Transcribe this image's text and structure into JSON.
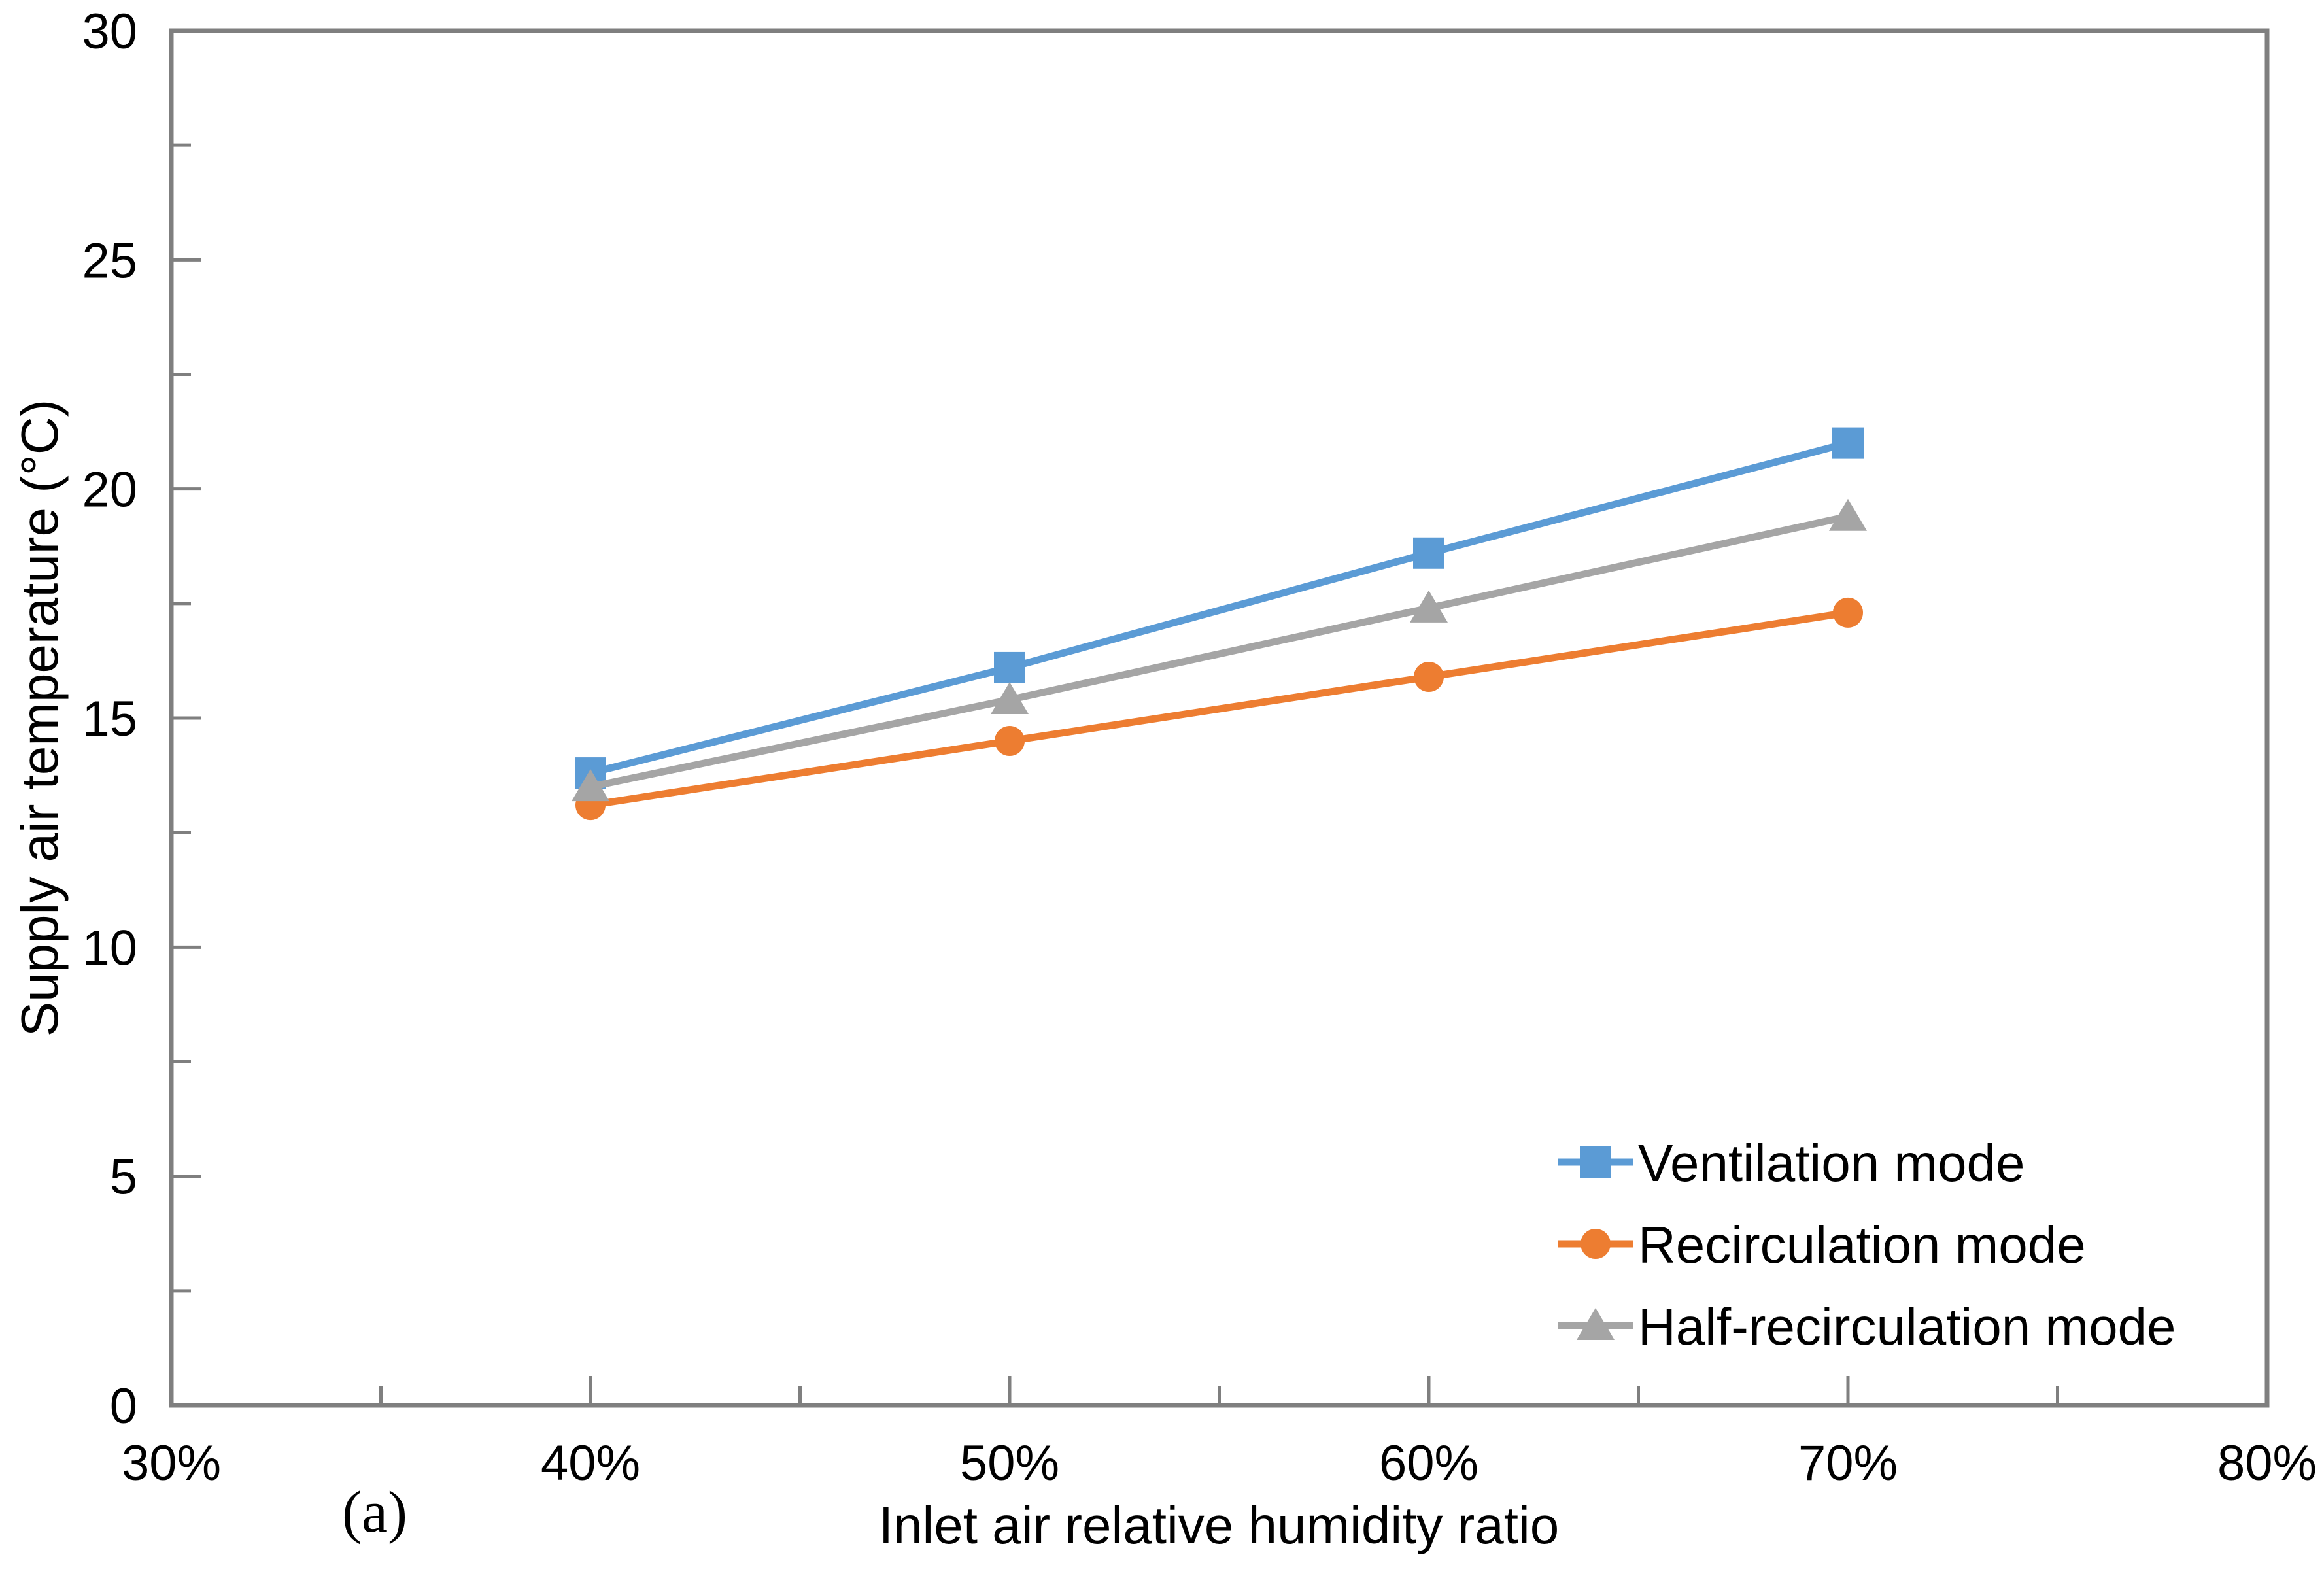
{
  "figure": {
    "panel_label": "(a)"
  },
  "colors": {
    "axis": "#7f7f7f",
    "text": "#000000",
    "background": "#ffffff",
    "series_blue": "#5B9BD5",
    "series_orange": "#ED7D31",
    "series_gray": "#A5A5A5"
  },
  "chart_data": {
    "type": "line",
    "title": "",
    "xlabel": "Inlet air relative humidity ratio",
    "ylabel": "Supply air temperature (°C)",
    "xlim": [
      30,
      80
    ],
    "ylim": [
      0,
      30
    ],
    "grid": false,
    "legend_position": "inside-lower-right",
    "x_tick_values": [
      30,
      40,
      50,
      60,
      70,
      80
    ],
    "x_tick_labels": [
      "30%",
      "40%",
      "50%",
      "60%",
      "70%",
      "80%"
    ],
    "x_minor_tick_step": 5,
    "y_tick_values": [
      0,
      5,
      10,
      15,
      20,
      25,
      30
    ],
    "y_tick_labels": [
      "0",
      "5",
      "10",
      "15",
      "20",
      "25",
      "30"
    ],
    "y_minor_tick_step": 2.5,
    "x": [
      40,
      50,
      60,
      70
    ],
    "x_units": "percent",
    "series": [
      {
        "name": "Ventilation mode",
        "marker": "square",
        "color": "#5B9BD5",
        "values": [
          13.8,
          16.1,
          18.6,
          21.0
        ]
      },
      {
        "name": "Recirculation mode",
        "marker": "circle",
        "color": "#ED7D31",
        "values": [
          13.1,
          14.5,
          15.9,
          17.3
        ]
      },
      {
        "name": "Half-recirculation mode",
        "marker": "triangle",
        "color": "#A5A5A5",
        "values": [
          13.5,
          15.4,
          17.4,
          19.4
        ]
      }
    ]
  }
}
